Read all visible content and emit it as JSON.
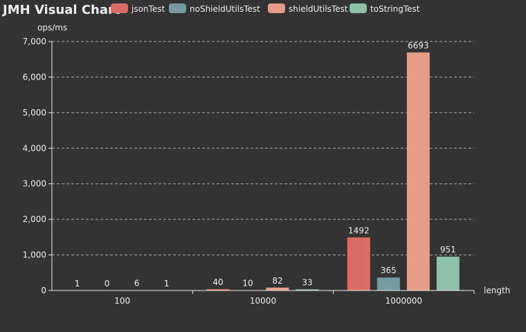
{
  "chart_data": {
    "type": "bar",
    "title": "JMH Visual Chart",
    "xlabel": "length",
    "ylabel": "ops/ms",
    "categories": [
      "100",
      "10000",
      "1000000"
    ],
    "ylim": [
      0,
      7000
    ],
    "yticks": [
      0,
      1000,
      2000,
      3000,
      4000,
      5000,
      6000,
      7000
    ],
    "ytick_labels": [
      "0",
      "1,000",
      "2,000",
      "3,000",
      "4,000",
      "5,000",
      "6,000",
      "7,000"
    ],
    "grid": true,
    "legend_position": "top",
    "series": [
      {
        "name": "jsonTest",
        "color": "#dd6b66",
        "values": [
          1,
          40,
          1492
        ]
      },
      {
        "name": "noShieldUtilsTest",
        "color": "#759aa0",
        "values": [
          0,
          10,
          365
        ]
      },
      {
        "name": "shieldUtilsTest",
        "color": "#e69d87",
        "values": [
          6,
          82,
          6693
        ]
      },
      {
        "name": "toStringTest",
        "color": "#8dc1a9",
        "values": [
          1,
          33,
          951
        ]
      }
    ]
  }
}
